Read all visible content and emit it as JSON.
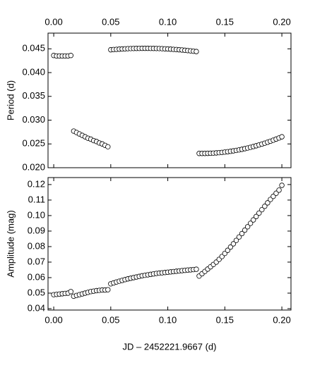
{
  "chart_data": [
    {
      "type": "scatter",
      "ylabel": "Period (d)",
      "x": [
        0,
        0.0025,
        0.005,
        0.0075,
        0.01,
        0.0125,
        0.015,
        0.0175,
        0.02,
        0.0225,
        0.025,
        0.0275,
        0.03,
        0.0325,
        0.035,
        0.0375,
        0.04,
        0.0425,
        0.045,
        0.0475,
        0.05,
        0.0525,
        0.055,
        0.0575,
        0.06,
        0.0625,
        0.065,
        0.0675,
        0.07,
        0.0725,
        0.075,
        0.0775,
        0.08,
        0.0825,
        0.085,
        0.0875,
        0.09,
        0.0925,
        0.095,
        0.0975,
        0.1,
        0.1025,
        0.105,
        0.1075,
        0.11,
        0.1125,
        0.115,
        0.1175,
        0.12,
        0.1225,
        0.125,
        0.1275,
        0.13,
        0.1325,
        0.135,
        0.1375,
        0.14,
        0.1425,
        0.145,
        0.1475,
        0.15,
        0.1525,
        0.155,
        0.1575,
        0.16,
        0.1625,
        0.165,
        0.1675,
        0.17,
        0.1725,
        0.175,
        0.1775,
        0.18,
        0.1825,
        0.185,
        0.1875,
        0.19,
        0.1925,
        0.195,
        0.1975,
        0.2
      ],
      "series": [
        {
          "color": "#000000",
          "values": [
            0.0436,
            0.0435,
            0.0435,
            0.0435,
            0.0435,
            0.0435,
            0.0436,
            0.0277,
            0.0274,
            0.0271,
            0.0268,
            0.0265,
            0.0262,
            0.026,
            0.0257,
            0.0255,
            0.0252,
            0.025,
            0.0247,
            0.0244,
            0.0448,
            0.04485,
            0.04489,
            0.04493,
            0.04497,
            0.045,
            0.04503,
            0.04505,
            0.04507,
            0.04508,
            0.04509,
            0.0451,
            0.0451,
            0.0451,
            0.04509,
            0.04508,
            0.04507,
            0.04505,
            0.04503,
            0.045,
            0.04497,
            0.04493,
            0.04489,
            0.04485,
            0.0448,
            0.04475,
            0.04469,
            0.04463,
            0.04457,
            0.0445,
            0.04443,
            0.023,
            0.023,
            0.023,
            0.02302,
            0.02304,
            0.02307,
            0.02311,
            0.02316,
            0.02322,
            0.02329,
            0.02336,
            0.02345,
            0.02354,
            0.02364,
            0.02375,
            0.02387,
            0.024,
            0.02414,
            0.02429,
            0.02445,
            0.02461,
            0.02479,
            0.02497,
            0.02516,
            0.02536,
            0.02557,
            0.02579,
            0.02602,
            0.02625,
            0.0265
          ]
        }
      ],
      "xlim": [
        -0.005,
        0.208
      ],
      "xticks": [
        {
          "value": 0,
          "label": "0.00"
        },
        0.05,
        {
          "value": 0.1,
          "label": "0.10"
        },
        0.15,
        {
          "value": 0.2,
          "label": "0.20"
        }
      ],
      "ylim": [
        0.02,
        0.0483
      ],
      "yticks": [
        {
          "value": 0.02,
          "label": "0.020"
        },
        {
          "value": 0.025,
          "label": "0.025"
        },
        {
          "value": 0.03,
          "label": "0.030"
        },
        {
          "value": 0.035,
          "label": "0.035"
        },
        {
          "value": 0.04,
          "label": "0.040"
        },
        {
          "value": 0.045,
          "label": "0.045"
        }
      ]
    },
    {
      "type": "scatter",
      "ylabel": "Amplitude (mag)",
      "xlabel": "JD – 2452221.9667 (d)",
      "x": [
        0,
        0.0025,
        0.005,
        0.0075,
        0.01,
        0.0125,
        0.015,
        0.0175,
        0.02,
        0.0225,
        0.025,
        0.0275,
        0.03,
        0.0325,
        0.035,
        0.0375,
        0.04,
        0.0425,
        0.045,
        0.0475,
        0.05,
        0.0525,
        0.055,
        0.0575,
        0.06,
        0.0625,
        0.065,
        0.0675,
        0.07,
        0.0725,
        0.075,
        0.0775,
        0.08,
        0.0825,
        0.085,
        0.0875,
        0.09,
        0.0925,
        0.095,
        0.0975,
        0.1,
        0.1025,
        0.105,
        0.1075,
        0.11,
        0.1125,
        0.115,
        0.1175,
        0.12,
        0.1225,
        0.125,
        0.1275,
        0.13,
        0.1325,
        0.135,
        0.1375,
        0.14,
        0.1425,
        0.145,
        0.1475,
        0.15,
        0.1525,
        0.155,
        0.1575,
        0.16,
        0.1625,
        0.165,
        0.1675,
        0.17,
        0.1725,
        0.175,
        0.1775,
        0.18,
        0.1825,
        0.185,
        0.1875,
        0.19,
        0.1925,
        0.195,
        0.1975,
        0.2
      ],
      "series": [
        {
          "color": "#000000",
          "values": [
            0.049,
            0.0492,
            0.0494,
            0.0496,
            0.0498,
            0.05,
            0.051,
            0.048,
            0.0485,
            0.049,
            0.0495,
            0.05,
            0.0505,
            0.051,
            0.0513,
            0.0516,
            0.0518,
            0.052,
            0.052,
            0.0522,
            0.056,
            0.0566,
            0.0572,
            0.0577,
            0.0582,
            0.0587,
            0.0592,
            0.0596,
            0.06,
            0.0604,
            0.0608,
            0.0612,
            0.0615,
            0.0618,
            0.0621,
            0.0624,
            0.0627,
            0.0629,
            0.0631,
            0.0633,
            0.0635,
            0.0637,
            0.0639,
            0.0641,
            0.0643,
            0.0645,
            0.0647,
            0.0649,
            0.065,
            0.0652,
            0.0654,
            0.061,
            0.0625,
            0.064,
            0.0655,
            0.067,
            0.0685,
            0.07,
            0.0718,
            0.0736,
            0.0756,
            0.0776,
            0.0797,
            0.0818,
            0.084,
            0.0862,
            0.0884,
            0.0906,
            0.0928,
            0.095,
            0.0972,
            0.0994,
            0.1016,
            0.1038,
            0.106,
            0.1082,
            0.1104,
            0.1124,
            0.1144,
            0.1164,
            0.1195
          ]
        }
      ],
      "xlim": [
        -0.005,
        0.208
      ],
      "xticks": [
        {
          "value": 0,
          "label": "0.00"
        },
        0.05,
        {
          "value": 0.1,
          "label": "0.10"
        },
        0.15,
        {
          "value": 0.2,
          "label": "0.20"
        }
      ],
      "ylim": [
        0.0391,
        0.1245
      ],
      "yticks": [
        0.04,
        0.05,
        0.06,
        0.07,
        0.08,
        0.09,
        {
          "value": 0.1,
          "label": "0.10"
        },
        0.11,
        0.12
      ]
    }
  ]
}
